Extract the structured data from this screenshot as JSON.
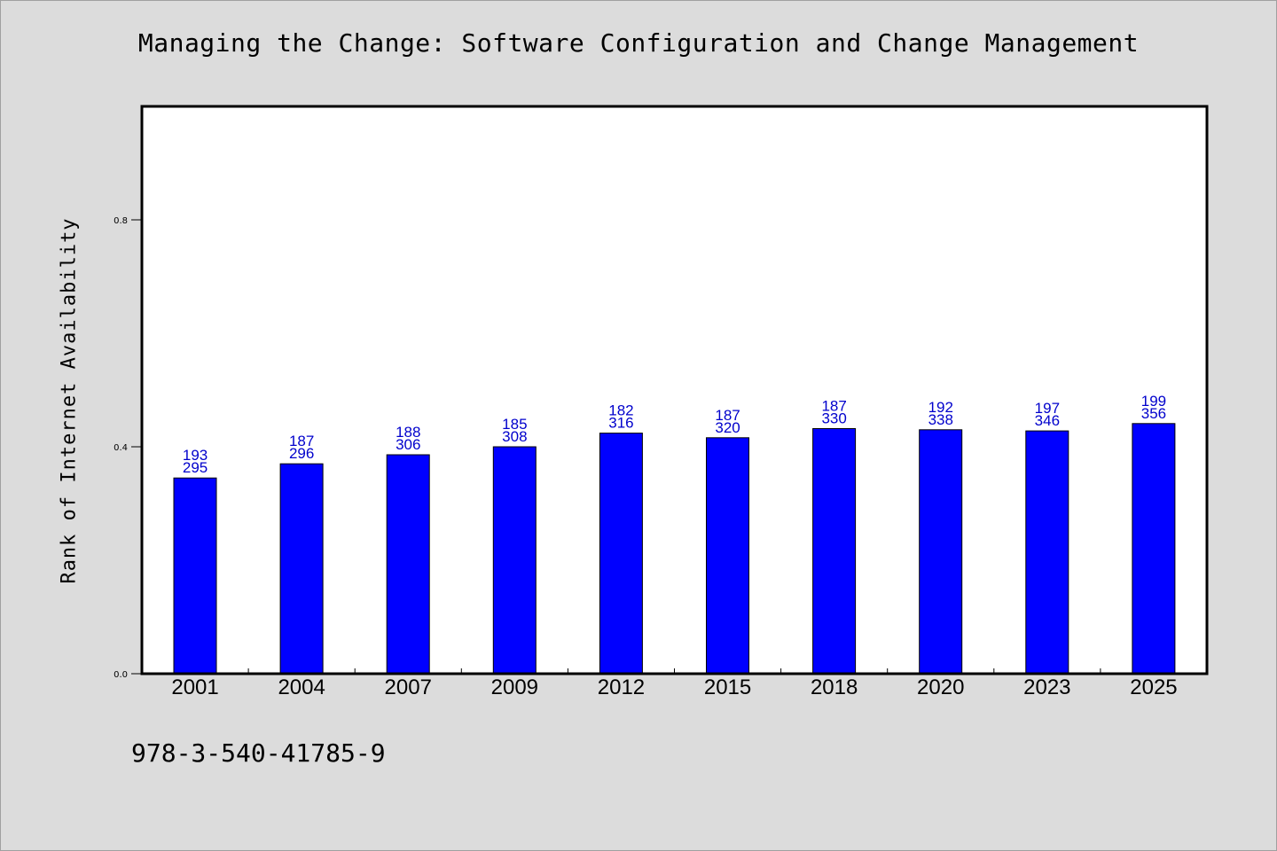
{
  "page": {
    "title": "Managing the Change: Software Configuration and Change Management",
    "footer_code": "978-3-540-41785-9"
  },
  "colors": {
    "background": "#dcdcdc",
    "plot_background": "#ffffff",
    "bar_fill": "#0000ff",
    "bar_label": "#0000cc",
    "axis": "#000000"
  },
  "chart_data": {
    "type": "bar",
    "title": "Managing the Change: Software Configuration and Change Management",
    "xlabel": "",
    "ylabel": "Rank of Internet Availability",
    "categories": [
      "2001",
      "2004",
      "2007",
      "2009",
      "2012",
      "2015",
      "2018",
      "2020",
      "2023",
      "2025"
    ],
    "values": [
      0.345,
      0.37,
      0.386,
      0.4,
      0.424,
      0.416,
      0.432,
      0.43,
      0.428,
      0.441
    ],
    "label_top": [
      "193",
      "187",
      "188",
      "185",
      "182",
      "187",
      "187",
      "192",
      "197",
      "199"
    ],
    "label_bottom": [
      "295",
      "296",
      "306",
      "308",
      "316",
      "320",
      "330",
      "338",
      "346",
      "356"
    ],
    "yticks": [
      0.0,
      0.4,
      0.8
    ],
    "ytick_labels": [
      "0.0",
      "0.4",
      "0.8"
    ],
    "ylim": [
      0,
      1.0
    ],
    "grid": false,
    "legend": "none"
  }
}
